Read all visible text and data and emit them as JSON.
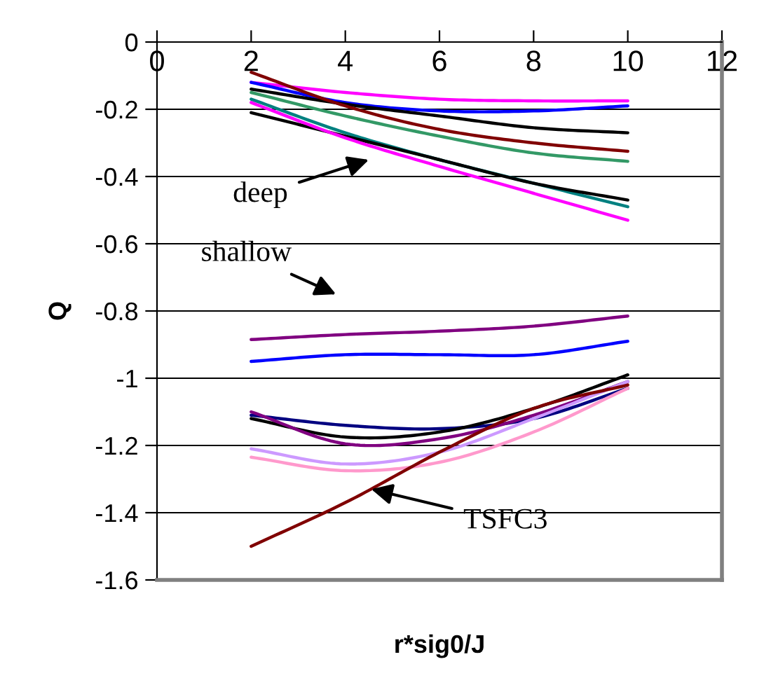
{
  "chart_data": {
    "type": "line",
    "xlabel": "r*sig0/J",
    "ylabel": "Q",
    "x": [
      2,
      4,
      6,
      8,
      10
    ],
    "xlim": [
      0,
      12
    ],
    "xticks": [
      0,
      2,
      4,
      6,
      8,
      10,
      12
    ],
    "ylim": [
      -1.6,
      0
    ],
    "yticks": [
      -1.6,
      -1.4,
      -1.2,
      -1,
      -0.8,
      -0.6,
      -0.4,
      -0.2,
      0
    ],
    "grid": "y",
    "marker": "none",
    "line_style": "solid",
    "series": [
      {
        "color": "#ff00ff",
        "values": [
          -0.12,
          -0.15,
          -0.17,
          -0.175,
          -0.175
        ]
      },
      {
        "color": "#0000ff",
        "values": [
          -0.12,
          -0.18,
          -0.205,
          -0.205,
          -0.19
        ]
      },
      {
        "color": "#000000",
        "values": [
          -0.14,
          -0.185,
          -0.22,
          -0.255,
          -0.27
        ]
      },
      {
        "color": "#800000",
        "values": [
          -0.09,
          -0.19,
          -0.26,
          -0.3,
          -0.325
        ]
      },
      {
        "color": "#339966",
        "values": [
          -0.15,
          -0.22,
          -0.28,
          -0.33,
          -0.355
        ]
      },
      {
        "color": "#008080",
        "values": [
          -0.17,
          -0.27,
          -0.35,
          -0.42,
          -0.49
        ]
      },
      {
        "color": "#000000",
        "values": [
          -0.21,
          -0.28,
          -0.35,
          -0.42,
          -0.47
        ]
      },
      {
        "color": "#ff00ff",
        "values": [
          -0.18,
          -0.285,
          -0.37,
          -0.45,
          -0.53
        ]
      },
      {
        "color": "#800080",
        "values": [
          -0.885,
          -0.87,
          -0.86,
          -0.845,
          -0.815
        ]
      },
      {
        "color": "#0000ff",
        "values": [
          -0.95,
          -0.93,
          -0.93,
          -0.93,
          -0.89
        ]
      },
      {
        "color": "#000080",
        "values": [
          -1.11,
          -1.14,
          -1.15,
          -1.12,
          -1.03
        ]
      },
      {
        "color": "#000000",
        "values": [
          -1.12,
          -1.175,
          -1.16,
          -1.09,
          -0.99
        ]
      },
      {
        "color": "#800080",
        "values": [
          -1.1,
          -1.195,
          -1.18,
          -1.11,
          -1.01
        ]
      },
      {
        "color": "#cc99ff",
        "values": [
          -1.21,
          -1.255,
          -1.22,
          -1.12,
          -1.01
        ]
      },
      {
        "color": "#ff99cc",
        "values": [
          -1.235,
          -1.275,
          -1.25,
          -1.16,
          -1.03
        ]
      },
      {
        "color": "#800000",
        "values": [
          -1.5,
          -1.37,
          -1.22,
          -1.09,
          -1.02
        ]
      }
    ],
    "annotations": [
      "deep",
      "shallow",
      {
        "text": "TSFC3",
        "x": 4.55,
        "y": -1.33
      }
    ]
  }
}
